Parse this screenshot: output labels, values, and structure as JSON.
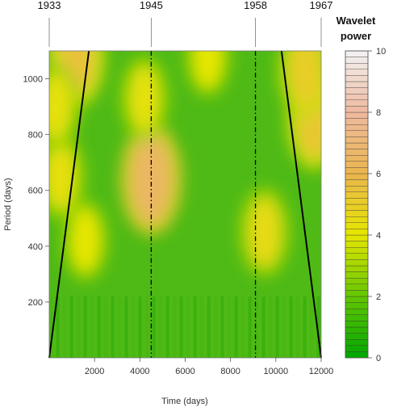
{
  "chart_data": {
    "type": "heatmap",
    "title": "",
    "xlabel": "Time (days)",
    "ylabel": "Period (days)",
    "xlim": [
      0,
      12000
    ],
    "ylim": [
      0,
      1100
    ],
    "x_ticks": [
      2000,
      4000,
      6000,
      8000,
      10000,
      12000
    ],
    "y_ticks": [
      200,
      400,
      600,
      800,
      1000
    ],
    "top_markers": [
      {
        "label": "1933",
        "x": 0,
        "style": "none"
      },
      {
        "label": "1945",
        "x": 4500,
        "style": "dashdot"
      },
      {
        "label": "1958",
        "x": 9100,
        "style": "dashdot"
      },
      {
        "label": "1967",
        "x": 12000,
        "style": "none"
      }
    ],
    "cone_of_influence": {
      "left": [
        [
          0,
          0
        ],
        [
          1750,
          1100
        ]
      ],
      "right": [
        [
          10250,
          1100
        ],
        [
          12000,
          0
        ]
      ]
    },
    "power_hotspots": [
      {
        "x": 4500,
        "y": 640,
        "power": 6.5
      },
      {
        "x": 1200,
        "y": 1080,
        "power": 5.5
      },
      {
        "x": 11700,
        "y": 850,
        "power": 5.3
      },
      {
        "x": 11300,
        "y": 1030,
        "power": 5.0
      },
      {
        "x": 9500,
        "y": 450,
        "power": 4.5
      },
      {
        "x": 4200,
        "y": 930,
        "power": 4.2
      },
      {
        "x": 1600,
        "y": 420,
        "power": 4.0
      },
      {
        "x": 500,
        "y": 650,
        "power": 4.3
      },
      {
        "x": 7000,
        "y": 1080,
        "power": 4.0
      },
      {
        "x": 300,
        "y": 900,
        "power": 4.2
      }
    ],
    "colorbar": {
      "title_line1": "Wavelet",
      "title_line2": "power",
      "min": 0,
      "max": 10,
      "ticks": [
        0,
        2,
        4,
        6,
        8,
        10
      ],
      "colors": [
        "#00a600",
        "#63c600",
        "#e6e600",
        "#eab64e",
        "#eeb99f",
        "#f2f2f2"
      ]
    }
  }
}
